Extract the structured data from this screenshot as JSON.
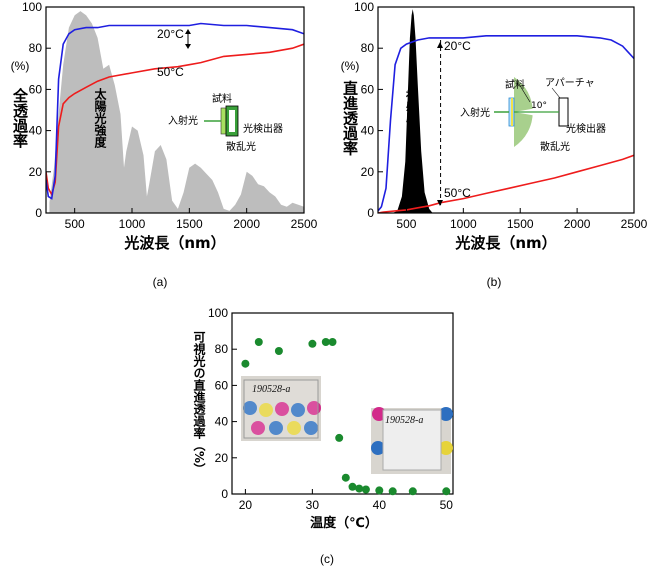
{
  "chart_data": [
    {
      "type": "line",
      "panel": "(a)",
      "ylabel": "全透過率",
      "yunit": "(%)",
      "xlabel": "光波長（nm）",
      "xlim": [
        250,
        2500
      ],
      "ylim": [
        0,
        100
      ],
      "xticks": [
        500,
        1000,
        1500,
        2000,
        2500
      ],
      "yticks": [
        0,
        20,
        40,
        60,
        80,
        100
      ],
      "series": [
        {
          "name": "20°C",
          "color": "#1f1fe0",
          "x": [
            250,
            270,
            300,
            330,
            360,
            400,
            450,
            500,
            600,
            700,
            800,
            1000,
            1200,
            1400,
            1500,
            1600,
            1800,
            2000,
            2200,
            2400,
            2500
          ],
          "y": [
            16,
            8,
            7,
            18,
            65,
            82,
            87,
            89,
            90,
            90,
            91,
            91,
            91,
            91,
            91,
            92,
            91,
            91,
            90,
            89,
            87
          ]
        },
        {
          "name": "50°C",
          "color": "#ee1c1c",
          "x": [
            250,
            270,
            300,
            330,
            360,
            400,
            450,
            500,
            600,
            700,
            800,
            1000,
            1200,
            1400,
            1500,
            1600,
            1800,
            2000,
            2200,
            2400,
            2500
          ],
          "y": [
            20,
            12,
            9,
            15,
            42,
            53,
            56,
            58,
            61,
            64,
            66,
            68,
            70,
            71,
            72,
            73,
            76,
            77,
            78,
            80,
            82
          ]
        }
      ],
      "solar_spectrum": {
        "label": "太陽光強度",
        "color": "#bdbdbd",
        "x": [
          280,
          320,
          360,
          400,
          450,
          500,
          550,
          600,
          650,
          700,
          750,
          800,
          850,
          900,
          930,
          950,
          1000,
          1050,
          1100,
          1130,
          1150,
          1200,
          1250,
          1300,
          1350,
          1400,
          1450,
          1500,
          1550,
          1600,
          1650,
          1700,
          1750,
          1800,
          1850,
          1900,
          1950,
          2000,
          2050,
          2100,
          2150,
          2200,
          2250,
          2300,
          2350,
          2400,
          2450,
          2500
        ],
        "y": [
          5,
          22,
          48,
          72,
          90,
          96,
          98,
          96,
          92,
          85,
          70,
          72,
          62,
          48,
          22,
          30,
          42,
          40,
          28,
          8,
          14,
          30,
          33,
          26,
          6,
          2,
          10,
          22,
          24,
          22,
          19,
          16,
          10,
          2,
          1,
          4,
          9,
          20,
          18,
          14,
          13,
          10,
          8,
          4,
          3,
          5,
          4,
          3
        ]
      },
      "labels": {
        "series1": "20°C",
        "series2": "50°C",
        "sample": "試料",
        "incident": "入射光",
        "detector": "光検出器",
        "scattered": "散乱光"
      }
    },
    {
      "type": "line",
      "panel": "(b)",
      "ylabel": "直進透過率",
      "yunit": "(%)",
      "xlabel": "光波長（nm）",
      "xlim": [
        250,
        2500
      ],
      "ylim": [
        0,
        100
      ],
      "xticks": [
        500,
        1000,
        1500,
        2000,
        2500
      ],
      "yticks": [
        0,
        20,
        40,
        60,
        80,
        100
      ],
      "series": [
        {
          "name": "20°C",
          "color": "#1f1fe0",
          "x": [
            250,
            280,
            320,
            360,
            400,
            450,
            500,
            600,
            700,
            800,
            1000,
            1200,
            1400,
            1600,
            1800,
            2000,
            2200,
            2300,
            2400,
            2450,
            2500
          ],
          "y": [
            1,
            3,
            12,
            45,
            72,
            80,
            82,
            84,
            85,
            85,
            85,
            86,
            86,
            86,
            86,
            86,
            85,
            84,
            81,
            78,
            75
          ]
        },
        {
          "name": "50°C",
          "color": "#ee1c1c",
          "x": [
            250,
            300,
            400,
            500,
            600,
            700,
            800,
            1000,
            1200,
            1400,
            1600,
            1800,
            2000,
            2200,
            2400,
            2500
          ],
          "y": [
            0,
            0.5,
            1,
            1.5,
            2.5,
            3.5,
            5,
            7,
            9.5,
            12,
            14.5,
            17,
            20,
            23,
            26,
            28
          ]
        }
      ],
      "visibility_curve": {
        "label": "視感度",
        "color": "#000000",
        "x": [
          380,
          420,
          460,
          490,
          510,
          530,
          545,
          555,
          565,
          580,
          600,
          630,
          660,
          700,
          730
        ],
        "y": [
          0,
          1,
          8,
          25,
          55,
          85,
          96,
          99,
          96,
          85,
          62,
          30,
          10,
          2,
          0
        ]
      },
      "labels": {
        "series1": "20°C",
        "series2": "50°C",
        "sample": "試料",
        "aperture": "アパーチャ",
        "angle": "10°",
        "incident": "入射光",
        "detector": "光検出器",
        "scattered": "散乱光"
      }
    },
    {
      "type": "scatter",
      "panel": "(c)",
      "ylabel": "可視光の直進透過率（%）",
      "xlabel": "温度（℃）",
      "xlim": [
        18,
        51
      ],
      "ylim": [
        0,
        100
      ],
      "xticks": [
        20,
        30,
        40,
        50
      ],
      "yticks": [
        0,
        20,
        40,
        60,
        80,
        100
      ],
      "color": "#1a8a2e",
      "x": [
        20,
        22,
        25,
        30,
        32,
        33,
        34,
        35,
        36,
        37,
        38,
        40,
        42,
        45,
        50
      ],
      "y": [
        72,
        84,
        79,
        83,
        84,
        84,
        31,
        9,
        4,
        3,
        2.5,
        2,
        1.5,
        1.5,
        1.5
      ],
      "photo_labels": [
        "190528-a",
        "190528-a"
      ]
    }
  ]
}
